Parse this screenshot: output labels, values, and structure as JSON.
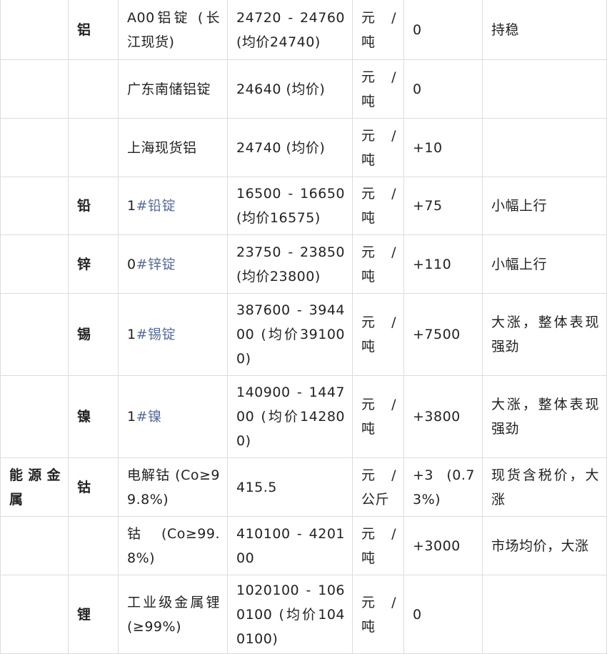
{
  "table": {
    "rows": [
      {
        "category": "",
        "metal": "铝",
        "grade_prefix": "",
        "grade": "A00铝锭 (长江现货)",
        "is_link": false,
        "price": "24720 - 24760 (均价24740)",
        "unit": "元 / 吨",
        "change": "0",
        "note": "持稳"
      },
      {
        "category": "",
        "metal": "",
        "grade_prefix": "",
        "grade": "广东南储铝锭",
        "is_link": false,
        "price": "24640 (均价)",
        "unit": "元 / 吨",
        "change": "0",
        "note": ""
      },
      {
        "category": "",
        "metal": "",
        "grade_prefix": "",
        "grade": "上海现货铝",
        "is_link": false,
        "price": "24740 (均价)",
        "unit": "元 / 吨",
        "change": "+10",
        "note": ""
      },
      {
        "category": "",
        "metal": "铅",
        "grade_prefix": "1",
        "grade": "#铅锭",
        "is_link": true,
        "price": "16500 - 16650 (均价16575)",
        "unit": "元 / 吨",
        "change": "+75",
        "note": "小幅上行"
      },
      {
        "category": "",
        "metal": "锌",
        "grade_prefix": "0",
        "grade": "#锌锭",
        "is_link": true,
        "price": "23750 - 23850 (均价23800)",
        "unit": "元 / 吨",
        "change": "+110",
        "note": "小幅上行"
      },
      {
        "category": "",
        "metal": "锡",
        "grade_prefix": "1",
        "grade": "#锡锭",
        "is_link": true,
        "price": "387600 - 394400 (均价391000)",
        "unit": "元 / 吨",
        "change": "+7500",
        "note": "大涨，整体表现强劲"
      },
      {
        "category": "",
        "metal": "镍",
        "grade_prefix": "1",
        "grade": "#镍",
        "is_link": true,
        "price": "140900 - 144700 (均价142800)",
        "unit": "元 / 吨",
        "change": "+3800",
        "note": "大涨，整体表现强劲"
      },
      {
        "category": "能源金属",
        "metal": "钴",
        "grade_prefix": "",
        "grade": "电解钴 (Co≥99.8%)",
        "is_link": false,
        "price": "415.5",
        "unit": "元 / 公斤",
        "change": "+3 (0.73%)",
        "note": "现货含税价，大涨"
      },
      {
        "category": "",
        "metal": "",
        "grade_prefix": "",
        "grade": "钴 (Co≥99.8%)",
        "is_link": false,
        "price": "410100 - 420100",
        "unit": "元 / 吨",
        "change": "+3000",
        "note": "市场均价，大涨"
      },
      {
        "category": "",
        "metal": "锂",
        "grade_prefix": "",
        "grade": "工业级金属锂 (≥99%)",
        "is_link": false,
        "price": "1020100 - 1060100 (均价1040100)",
        "unit": "元 / 吨",
        "change": "0",
        "note": ""
      }
    ]
  },
  "colors": {
    "link": "#576b95",
    "border": "#dcdcdc",
    "text": "#222222"
  }
}
